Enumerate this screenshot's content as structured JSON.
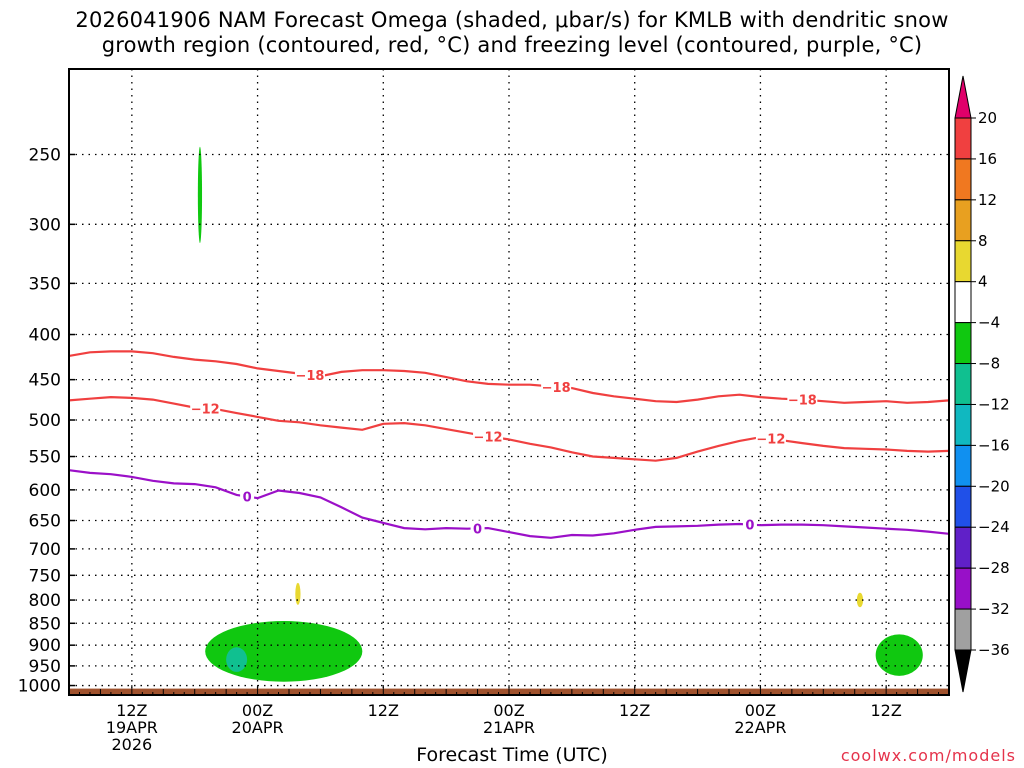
{
  "title_line1": "2026041906 NAM Forecast Omega (shaded, μbar/s) for KMLB with dendritic snow",
  "title_line2": "growth region (contoured, red, °C) and freezing level (contoured, purple, °C)",
  "credit": "coolwx.com/models",
  "chart_data": {
    "type": "time-height contour",
    "xlabel": "Forecast Time (UTC)",
    "x_ticks": [
      {
        "t": 6,
        "lines": [
          "12Z",
          "19APR",
          "2026"
        ]
      },
      {
        "t": 18,
        "lines": [
          "00Z",
          "20APR"
        ]
      },
      {
        "t": 30,
        "lines": [
          "12Z"
        ]
      },
      {
        "t": 42,
        "lines": [
          "00Z",
          "21APR"
        ]
      },
      {
        "t": 54,
        "lines": [
          "12Z"
        ]
      },
      {
        "t": 66,
        "lines": [
          "00Z",
          "22APR"
        ]
      },
      {
        "t": 78,
        "lines": [
          "12Z"
        ]
      }
    ],
    "x_range_hours": [
      0,
      84
    ],
    "y_ticks": [
      250,
      300,
      350,
      400,
      450,
      500,
      550,
      600,
      650,
      700,
      750,
      800,
      850,
      900,
      950,
      1000
    ],
    "y_range_hPa": [
      200,
      1025
    ],
    "y_scale": "log",
    "grid": true,
    "colorbar": {
      "labels": [
        "20",
        "16",
        "12",
        "8",
        "4",
        "−4",
        "−8",
        "−12",
        "−16",
        "−20",
        "−24",
        "−28",
        "−32",
        "−36"
      ],
      "colors": [
        "#e0006a",
        "#f04040",
        "#f07820",
        "#e8a020",
        "#e8d830",
        "#ffffff",
        "#10c810",
        "#10c090",
        "#10b8c0",
        "#1090f0",
        "#2050e8",
        "#6020c8",
        "#9810c8",
        "#a0a0a0",
        "#000000"
      ]
    },
    "contours": [
      {
        "label": "−18",
        "color": "#f04040",
        "points": [
          [
            0,
            423
          ],
          [
            2,
            419
          ],
          [
            4,
            418
          ],
          [
            6,
            418
          ],
          [
            8,
            420
          ],
          [
            10,
            424
          ],
          [
            12,
            427
          ],
          [
            14,
            429
          ],
          [
            16,
            432
          ],
          [
            18,
            437
          ],
          [
            20,
            440
          ],
          [
            22,
            443
          ],
          [
            24,
            446
          ],
          [
            26,
            441
          ],
          [
            28,
            439
          ],
          [
            30,
            439
          ],
          [
            32,
            440
          ],
          [
            34,
            442
          ],
          [
            36,
            447
          ],
          [
            38,
            452
          ],
          [
            40,
            455
          ],
          [
            42,
            456
          ],
          [
            44,
            456
          ],
          [
            46,
            458
          ],
          [
            48,
            460
          ],
          [
            50,
            466
          ],
          [
            52,
            470
          ],
          [
            54,
            473
          ],
          [
            56,
            476
          ],
          [
            58,
            477
          ],
          [
            60,
            474
          ],
          [
            62,
            470
          ],
          [
            64,
            468
          ],
          [
            66,
            471
          ],
          [
            68,
            473
          ],
          [
            70,
            474
          ],
          [
            72,
            476
          ],
          [
            74,
            478
          ],
          [
            76,
            477
          ],
          [
            78,
            476
          ],
          [
            80,
            478
          ],
          [
            82,
            477
          ],
          [
            84,
            475
          ]
        ],
        "labels_at": [
          23,
          46.5,
          70
        ]
      },
      {
        "label": "−12",
        "color": "#f04040",
        "points": [
          [
            0,
            475
          ],
          [
            2,
            473
          ],
          [
            4,
            471
          ],
          [
            6,
            472
          ],
          [
            8,
            474
          ],
          [
            10,
            479
          ],
          [
            12,
            484
          ],
          [
            14,
            486
          ],
          [
            16,
            491
          ],
          [
            18,
            496
          ],
          [
            20,
            501
          ],
          [
            22,
            503
          ],
          [
            24,
            507
          ],
          [
            26,
            510
          ],
          [
            28,
            513
          ],
          [
            30,
            505
          ],
          [
            32,
            504
          ],
          [
            34,
            507
          ],
          [
            36,
            512
          ],
          [
            38,
            517
          ],
          [
            40,
            522
          ],
          [
            42,
            526
          ],
          [
            44,
            532
          ],
          [
            46,
            537
          ],
          [
            48,
            544
          ],
          [
            50,
            550
          ],
          [
            52,
            552
          ],
          [
            54,
            554
          ],
          [
            56,
            556
          ],
          [
            58,
            552
          ],
          [
            60,
            543
          ],
          [
            62,
            535
          ],
          [
            64,
            528
          ],
          [
            66,
            523
          ],
          [
            68,
            527
          ],
          [
            70,
            531
          ],
          [
            72,
            535
          ],
          [
            74,
            538
          ],
          [
            76,
            539
          ],
          [
            78,
            540
          ],
          [
            80,
            542
          ],
          [
            82,
            543
          ],
          [
            84,
            542
          ]
        ],
        "labels_at": [
          13,
          40,
          67
        ]
      },
      {
        "label": "0",
        "color": "#9b10c8",
        "points": [
          [
            0,
            570
          ],
          [
            2,
            574
          ],
          [
            4,
            576
          ],
          [
            6,
            580
          ],
          [
            8,
            586
          ],
          [
            10,
            590
          ],
          [
            12,
            591
          ],
          [
            14,
            596
          ],
          [
            16,
            608
          ],
          [
            18,
            613
          ],
          [
            20,
            601
          ],
          [
            22,
            605
          ],
          [
            24,
            612
          ],
          [
            26,
            628
          ],
          [
            28,
            645
          ],
          [
            30,
            654
          ],
          [
            32,
            663
          ],
          [
            34,
            665
          ],
          [
            36,
            663
          ],
          [
            38,
            664
          ],
          [
            40,
            663
          ],
          [
            42,
            670
          ],
          [
            44,
            677
          ],
          [
            46,
            680
          ],
          [
            48,
            675
          ],
          [
            50,
            676
          ],
          [
            52,
            672
          ],
          [
            54,
            666
          ],
          [
            56,
            661
          ],
          [
            58,
            660
          ],
          [
            60,
            659
          ],
          [
            62,
            657
          ],
          [
            64,
            656
          ],
          [
            66,
            658
          ],
          [
            68,
            657
          ],
          [
            70,
            657
          ],
          [
            72,
            658
          ],
          [
            74,
            660
          ],
          [
            76,
            662
          ],
          [
            78,
            664
          ],
          [
            80,
            666
          ],
          [
            82,
            669
          ],
          [
            84,
            673
          ]
        ],
        "labels_at": [
          17,
          39,
          65
        ]
      }
    ],
    "shaded_regions": [
      {
        "value": "−4 to −8",
        "color": "#10c810",
        "t_range": [
          12.3,
          12.7
        ],
        "p_range": [
          245,
          315
        ]
      },
      {
        "value": "−4 to −8",
        "color": "#10c810",
        "t_range": [
          13,
          28
        ],
        "p_range": [
          845,
          990
        ]
      },
      {
        "value": "−8 to −12",
        "color": "#10c090",
        "t_range": [
          15,
          17
        ],
        "p_range": [
          905,
          965
        ]
      },
      {
        "value": "4 to 8",
        "color": "#e8d830",
        "t_range": [
          21.6,
          22.1
        ],
        "p_range": [
          765,
          810
        ]
      },
      {
        "value": "4 to 8",
        "color": "#e8d830",
        "t_range": [
          75.2,
          75.8
        ],
        "p_range": [
          785,
          815
        ]
      },
      {
        "value": "−4 to −8",
        "color": "#10c810",
        "t_range": [
          77,
          81.5
        ],
        "p_range": [
          875,
          975
        ]
      }
    ],
    "ground": {
      "color": "#a0522d",
      "p_from": 1008
    }
  }
}
